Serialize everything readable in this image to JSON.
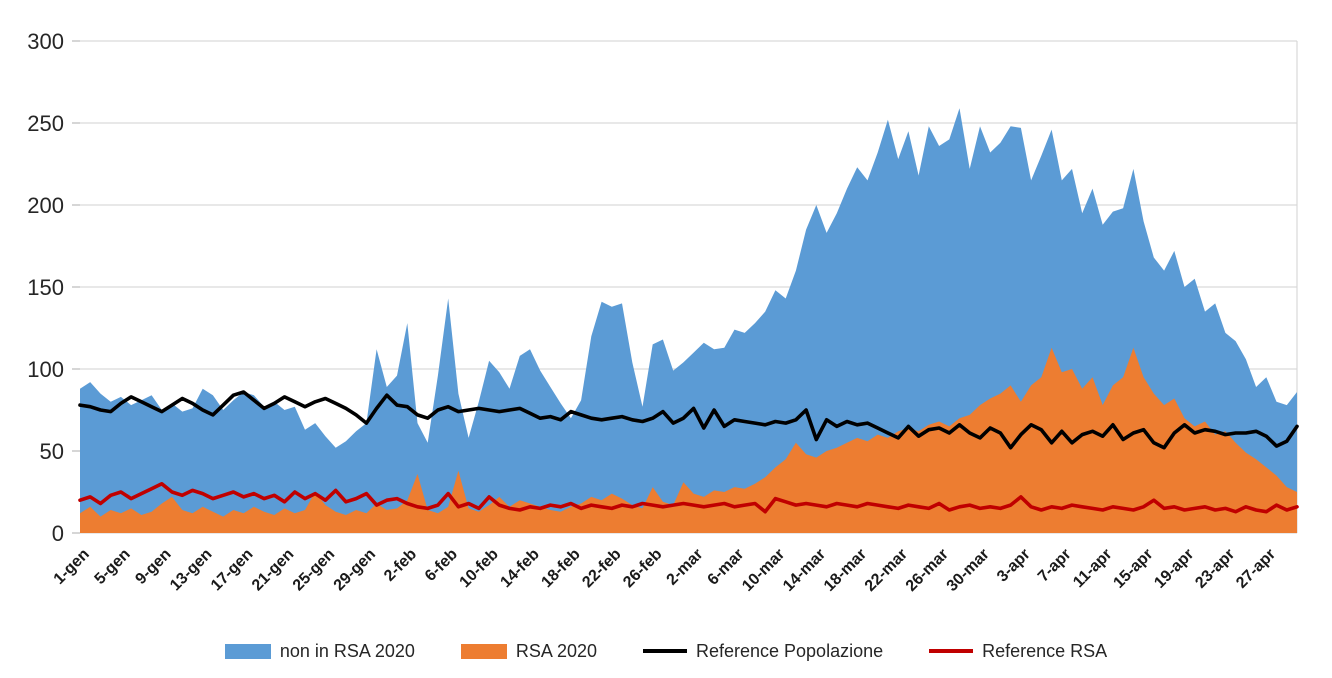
{
  "chart_data": {
    "type": "area",
    "title": "",
    "xlabel": "",
    "ylabel": "",
    "ylim": [
      0,
      300
    ],
    "y_ticks": [
      0,
      50,
      100,
      150,
      200,
      250,
      300
    ],
    "grid": true,
    "legend_position": "bottom",
    "x_tick_interval": 4,
    "x": [
      "1-gen",
      "2-gen",
      "3-gen",
      "4-gen",
      "5-gen",
      "6-gen",
      "7-gen",
      "8-gen",
      "9-gen",
      "10-gen",
      "11-gen",
      "12-gen",
      "13-gen",
      "14-gen",
      "15-gen",
      "16-gen",
      "17-gen",
      "18-gen",
      "19-gen",
      "20-gen",
      "21-gen",
      "22-gen",
      "23-gen",
      "24-gen",
      "25-gen",
      "26-gen",
      "27-gen",
      "28-gen",
      "29-gen",
      "30-gen",
      "31-gen",
      "1-feb",
      "2-feb",
      "3-feb",
      "4-feb",
      "5-feb",
      "6-feb",
      "7-feb",
      "8-feb",
      "9-feb",
      "10-feb",
      "11-feb",
      "12-feb",
      "13-feb",
      "14-feb",
      "15-feb",
      "16-feb",
      "17-feb",
      "18-feb",
      "19-feb",
      "20-feb",
      "21-feb",
      "22-feb",
      "23-feb",
      "24-feb",
      "25-feb",
      "26-feb",
      "27-feb",
      "28-feb",
      "1-mar",
      "2-mar",
      "3-mar",
      "4-mar",
      "5-mar",
      "6-mar",
      "7-mar",
      "8-mar",
      "9-mar",
      "10-mar",
      "11-mar",
      "12-mar",
      "13-mar",
      "14-mar",
      "15-mar",
      "16-mar",
      "17-mar",
      "18-mar",
      "19-mar",
      "20-mar",
      "21-mar",
      "22-mar",
      "23-mar",
      "24-mar",
      "25-mar",
      "26-mar",
      "27-mar",
      "28-mar",
      "29-mar",
      "30-mar",
      "31-mar",
      "1-apr",
      "2-apr",
      "3-apr",
      "4-apr",
      "5-apr",
      "6-apr",
      "7-apr",
      "8-apr",
      "9-apr",
      "10-apr",
      "11-apr",
      "12-apr",
      "13-apr",
      "14-apr",
      "15-apr",
      "16-apr",
      "17-apr",
      "18-apr",
      "19-apr",
      "20-apr",
      "21-apr",
      "22-apr",
      "23-apr",
      "24-apr",
      "25-apr",
      "26-apr",
      "27-apr",
      "28-apr",
      "29-apr",
      "30-apr"
    ],
    "series": [
      {
        "name": "non in RSA 2020",
        "type": "area",
        "color": "#5B9BD5",
        "values": [
          88,
          92,
          85,
          80,
          83,
          78,
          81,
          84,
          75,
          79,
          74,
          76,
          88,
          84,
          75,
          81,
          86,
          84,
          77,
          80,
          75,
          77,
          63,
          67,
          59,
          52,
          56,
          62,
          67,
          112,
          89,
          96,
          128,
          67,
          55,
          96,
          143,
          85,
          58,
          80,
          105,
          98,
          88,
          108,
          112,
          99,
          89,
          79,
          70,
          81,
          120,
          141,
          138,
          140,
          104,
          77,
          115,
          118,
          99,
          104,
          110,
          116,
          112,
          113,
          124,
          122,
          128,
          135,
          148,
          143,
          160,
          185,
          200,
          183,
          195,
          210,
          223,
          215,
          232,
          252,
          228,
          245,
          218,
          248,
          236,
          240,
          259,
          222,
          248,
          232,
          238,
          248,
          247,
          215,
          230,
          246,
          215,
          222,
          195,
          210,
          188,
          196,
          198,
          222,
          190,
          168,
          160,
          172,
          150,
          155,
          135,
          140,
          122,
          117,
          106,
          89,
          95,
          80,
          78,
          86
        ]
      },
      {
        "name": "RSA 2020",
        "type": "area",
        "color": "#ED7D31",
        "values": [
          12,
          16,
          10,
          14,
          12,
          15,
          11,
          13,
          18,
          22,
          14,
          12,
          16,
          13,
          10,
          14,
          12,
          16,
          13,
          11,
          15,
          12,
          14,
          25,
          17,
          13,
          11,
          14,
          12,
          18,
          14,
          15,
          20,
          36,
          14,
          12,
          16,
          38,
          15,
          13,
          17,
          22,
          16,
          20,
          18,
          16,
          14,
          13,
          16,
          18,
          22,
          20,
          24,
          21,
          17,
          15,
          28,
          19,
          17,
          31,
          24,
          22,
          26,
          25,
          28,
          27,
          30,
          34,
          40,
          45,
          55,
          48,
          46,
          50,
          52,
          55,
          58,
          56,
          60,
          58,
          62,
          64,
          62,
          66,
          68,
          65,
          70,
          72,
          78,
          82,
          85,
          90,
          80,
          90,
          95,
          113,
          98,
          100,
          88,
          95,
          78,
          90,
          95,
          113,
          95,
          85,
          78,
          82,
          70,
          65,
          68,
          60,
          62,
          55,
          49,
          45,
          40,
          35,
          28,
          25
        ]
      },
      {
        "name": "Reference Popolazione",
        "type": "line",
        "color": "#000000",
        "values": [
          78,
          77,
          75,
          74,
          79,
          83,
          80,
          77,
          74,
          78,
          82,
          79,
          75,
          72,
          78,
          84,
          86,
          81,
          76,
          79,
          83,
          80,
          77,
          80,
          82,
          79,
          76,
          72,
          67,
          76,
          84,
          78,
          77,
          72,
          70,
          75,
          77,
          74,
          75,
          76,
          75,
          74,
          75,
          76,
          73,
          70,
          71,
          69,
          74,
          72,
          70,
          69,
          70,
          71,
          69,
          68,
          70,
          74,
          67,
          70,
          76,
          64,
          75,
          65,
          69,
          68,
          67,
          66,
          68,
          67,
          69,
          75,
          57,
          69,
          65,
          68,
          66,
          67,
          64,
          61,
          58,
          65,
          59,
          63,
          64,
          61,
          66,
          61,
          58,
          64,
          61,
          52,
          60,
          66,
          63,
          55,
          62,
          55,
          60,
          62,
          59,
          66,
          57,
          61,
          63,
          55,
          52,
          61,
          66,
          61,
          63,
          62,
          60,
          61,
          61,
          62,
          59,
          53,
          56,
          65
        ]
      },
      {
        "name": "Reference RSA",
        "type": "line",
        "color": "#C00000",
        "values": [
          20,
          22,
          18,
          23,
          25,
          21,
          24,
          27,
          30,
          25,
          23,
          26,
          24,
          21,
          23,
          25,
          22,
          24,
          21,
          23,
          19,
          25,
          21,
          24,
          20,
          26,
          19,
          21,
          24,
          17,
          20,
          21,
          18,
          16,
          15,
          17,
          24,
          16,
          18,
          15,
          22,
          17,
          15,
          14,
          16,
          15,
          17,
          16,
          18,
          15,
          17,
          16,
          15,
          17,
          16,
          18,
          17,
          16,
          17,
          18,
          17,
          16,
          17,
          18,
          16,
          17,
          18,
          13,
          21,
          19,
          17,
          18,
          17,
          16,
          18,
          17,
          16,
          18,
          17,
          16,
          15,
          17,
          16,
          15,
          18,
          14,
          16,
          17,
          15,
          16,
          15,
          17,
          22,
          16,
          14,
          16,
          15,
          17,
          16,
          15,
          14,
          16,
          15,
          14,
          16,
          20,
          15,
          16,
          14,
          15,
          16,
          14,
          15,
          13,
          16,
          14,
          13,
          17,
          14,
          16
        ]
      }
    ],
    "colors": {
      "gridline": "#D9D9D9",
      "tick": "#BFBFBF",
      "axis_text": "#262626",
      "background": "#ffffff"
    }
  }
}
